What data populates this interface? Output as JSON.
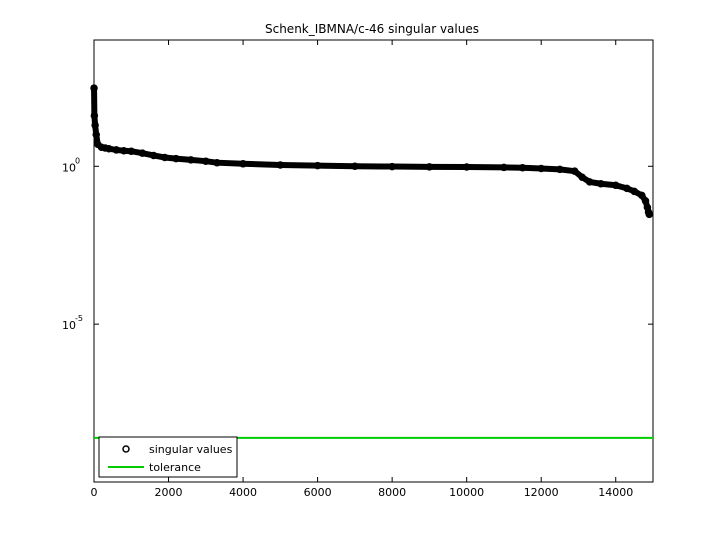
{
  "chart_data": {
    "type": "scatter",
    "title": "Schenk_IBMNA/c-46 singular values",
    "xlabel": "",
    "ylabel": "",
    "xlim": [
      0,
      15000
    ],
    "ylim": [
      1e-10,
      10000.0
    ],
    "yscale": "log",
    "grid": false,
    "legend_position": "bottom-left",
    "x_ticks": [
      {
        "value": 0,
        "label": "0"
      },
      {
        "value": 2000,
        "label": "2000"
      },
      {
        "value": 4000,
        "label": "4000"
      },
      {
        "value": 6000,
        "label": "6000"
      },
      {
        "value": 8000,
        "label": "8000"
      },
      {
        "value": 10000,
        "label": "10000"
      },
      {
        "value": 12000,
        "label": "12000"
      },
      {
        "value": 14000,
        "label": "14000"
      }
    ],
    "y_ticks": [
      {
        "value": 1,
        "base": "10",
        "exponent": "0"
      },
      {
        "value": 1e-05,
        "base": "10",
        "exponent": "-5"
      }
    ],
    "series": [
      {
        "name": "singular values",
        "marker": "circle",
        "color": "#000000",
        "x": [
          1,
          10,
          30,
          60,
          100,
          200,
          300,
          400,
          600,
          800,
          1000,
          1300,
          1600,
          1900,
          2200,
          2600,
          3000,
          3300,
          4000,
          5000,
          6000,
          7000,
          8000,
          9000,
          10000,
          11000,
          11500,
          12000,
          12500,
          12900,
          13100,
          13300,
          13600,
          14000,
          14300,
          14500,
          14700,
          14800,
          14850,
          14880,
          14900
        ],
        "values": [
          300,
          40,
          20,
          10,
          5,
          4,
          3.8,
          3.6,
          3.3,
          3.1,
          3.0,
          2.6,
          2.2,
          1.9,
          1.75,
          1.6,
          1.45,
          1.3,
          1.2,
          1.1,
          1.05,
          1.0,
          0.98,
          0.96,
          0.95,
          0.92,
          0.9,
          0.85,
          0.8,
          0.7,
          0.45,
          0.32,
          0.28,
          0.25,
          0.2,
          0.16,
          0.12,
          0.08,
          0.05,
          0.035,
          0.03
        ]
      },
      {
        "name": "tolerance",
        "marker": "line",
        "color": "#00cc00",
        "x": [
          0,
          15000
        ],
        "values": [
          2.5e-09,
          2.5e-09
        ]
      }
    ]
  }
}
